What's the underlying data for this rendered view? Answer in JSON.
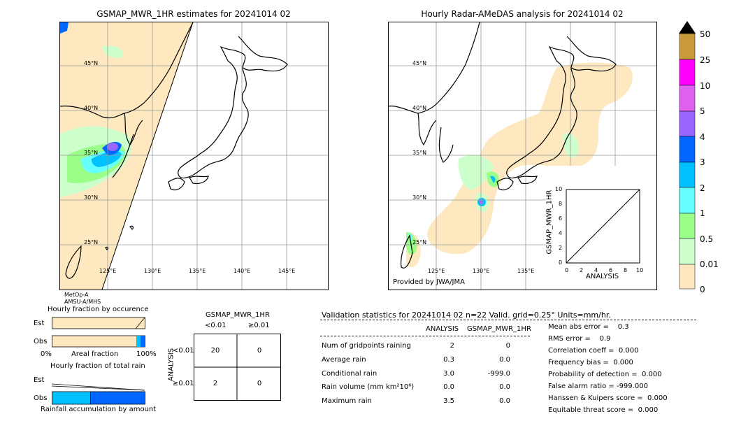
{
  "left_map": {
    "title": "GSMAP_MWR_1HR estimates for 20241014 02",
    "lat_labels": [
      "45°N",
      "40°N",
      "35°N",
      "30°N",
      "25°N"
    ],
    "lon_labels": [
      "125°E",
      "130°E",
      "135°E",
      "140°E",
      "145°E"
    ],
    "satellite_labels": [
      "MetOp-A",
      "AMSU-A/MHS"
    ]
  },
  "right_map": {
    "title": "Hourly Radar-AMeDAS analysis for 20241014 02",
    "lat_labels": [
      "45°N",
      "40°N",
      "35°N",
      "30°N",
      "25°N"
    ],
    "lon_labels": [
      "125°E",
      "130°E",
      "135°E"
    ],
    "provider": "Provided by JWA/JMA"
  },
  "scatter_inset": {
    "xlabel": "ANALYSIS",
    "ylabel": "GSMAP_MWR_1HR",
    "ticks": [
      "0",
      "2",
      "4",
      "6",
      "8",
      "10"
    ],
    "y_top": "10"
  },
  "colorbar": {
    "labels": [
      "50",
      "25",
      "10",
      "5",
      "4",
      "3",
      "2",
      "1",
      "0.5",
      "0.01",
      "0"
    ],
    "colors": [
      "#c89a3a",
      "#ff00ff",
      "#e060f0",
      "#9966ff",
      "#0066ff",
      "#00c0ff",
      "#66ffff",
      "#99ff88",
      "#ccffcc",
      "#ffe8c0"
    ]
  },
  "fraction_occurrence": {
    "title": "Hourly fraction by occurence",
    "row_est": "Est",
    "row_obs": "Obs",
    "axis_left": "0%",
    "axis_mid": "Areal fraction",
    "axis_right": "100%"
  },
  "fraction_total": {
    "title": "Hourly fraction of total rain",
    "row_est": "Est",
    "row_obs": "Obs",
    "axis_label": "Rainfall accumulation by amount"
  },
  "contingency": {
    "title": "GSMAP_MWR_1HR",
    "col_lt": "<0.01",
    "col_ge": "≥0.01",
    "side_label": "ANALYSIS",
    "row_lt": "<0.01",
    "row_ge": "≥0.01",
    "cells": [
      [
        "20",
        "0"
      ],
      [
        "2",
        "0"
      ]
    ]
  },
  "validation": {
    "header": "Validation statistics for 20241014 02  n=22 Valid. grid=0.25° Units=mm/hr.",
    "col_analysis": "ANALYSIS",
    "col_gsmap": "GSMAP_MWR_1HR",
    "rows": [
      {
        "label": "Num of gridpoints raining",
        "a": "2",
        "g": "0"
      },
      {
        "label": "Average rain",
        "a": "0.3",
        "g": "0.0"
      },
      {
        "label": "Conditional rain",
        "a": "3.0",
        "g": "-999.0"
      },
      {
        "label": "Rain volume (mm km²10⁶)",
        "a": "0.0",
        "g": "0.0"
      },
      {
        "label": "Maximum rain",
        "a": "3.5",
        "g": "0.0"
      }
    ],
    "scores": [
      "Mean abs error =    0.3",
      "RMS error =    0.9",
      "Correlation coeff =  0.000",
      "Frequency bias =  0.000",
      "Probability of detection =  0.000",
      "False alarm ratio = -999.000",
      "Hanssen & Kuipers score =  0.000",
      "Equitable threat score =  0.000"
    ]
  },
  "chart_data": {
    "type": "table",
    "contingency": {
      "rows": [
        "<0.01",
        "≥0.01"
      ],
      "cols": [
        "<0.01",
        "≥0.01"
      ],
      "values": [
        [
          20,
          0
        ],
        [
          2,
          0
        ]
      ]
    },
    "scatter": {
      "xlim": [
        0,
        10
      ],
      "ylim": [
        0,
        10
      ],
      "diagonal": true
    }
  }
}
